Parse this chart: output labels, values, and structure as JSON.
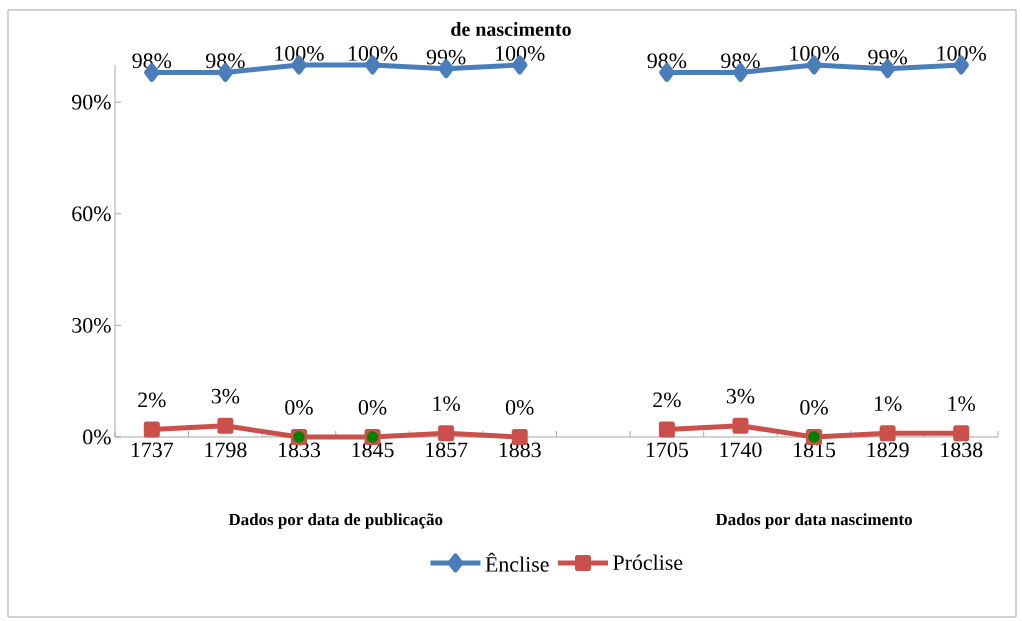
{
  "chart_data": {
    "type": "line",
    "title": "de nascimento",
    "categories": [
      "1737",
      "1798",
      "1833",
      "1845",
      "1857",
      "1883",
      null,
      "1705",
      "1740",
      "1815",
      "1829",
      "1838"
    ],
    "series": [
      {
        "name": "Ênclise",
        "color": "#4a7ebb",
        "marker": "diamond",
        "values": [
          98,
          98,
          100,
          100,
          99,
          100,
          null,
          98,
          98,
          100,
          99,
          100
        ],
        "value_labels": [
          "98%",
          "98%",
          "100%",
          "100%",
          "99%",
          "100%",
          null,
          "98%",
          "98%",
          "100%",
          "99%",
          "100%"
        ]
      },
      {
        "name": "Próclise",
        "color": "#c9504b",
        "marker": "square",
        "values": [
          2,
          3,
          0,
          0,
          1,
          0,
          null,
          2,
          3,
          0,
          1,
          1
        ],
        "value_labels": [
          "2%",
          "3%",
          "0%",
          "0%",
          "1%",
          "0%",
          null,
          "2%",
          "3%",
          "0%",
          "1%",
          "1%"
        ]
      },
      {
        "type": "scatter",
        "color": "#008000",
        "marker": "circle",
        "values": [
          null,
          null,
          0,
          0,
          null,
          null,
          null,
          null,
          null,
          0,
          null,
          null
        ]
      }
    ],
    "ylim": [
      0,
      100
    ],
    "yticks": [
      {
        "value": 0,
        "label": "0%"
      },
      {
        "value": 30,
        "label": "30%"
      },
      {
        "value": 60,
        "label": "60%"
      },
      {
        "value": 90,
        "label": "90%"
      }
    ],
    "annotations": [
      "Dados por data de publicação",
      "Dados por data nascimento"
    ],
    "legend": "bottom",
    "grid": false
  }
}
